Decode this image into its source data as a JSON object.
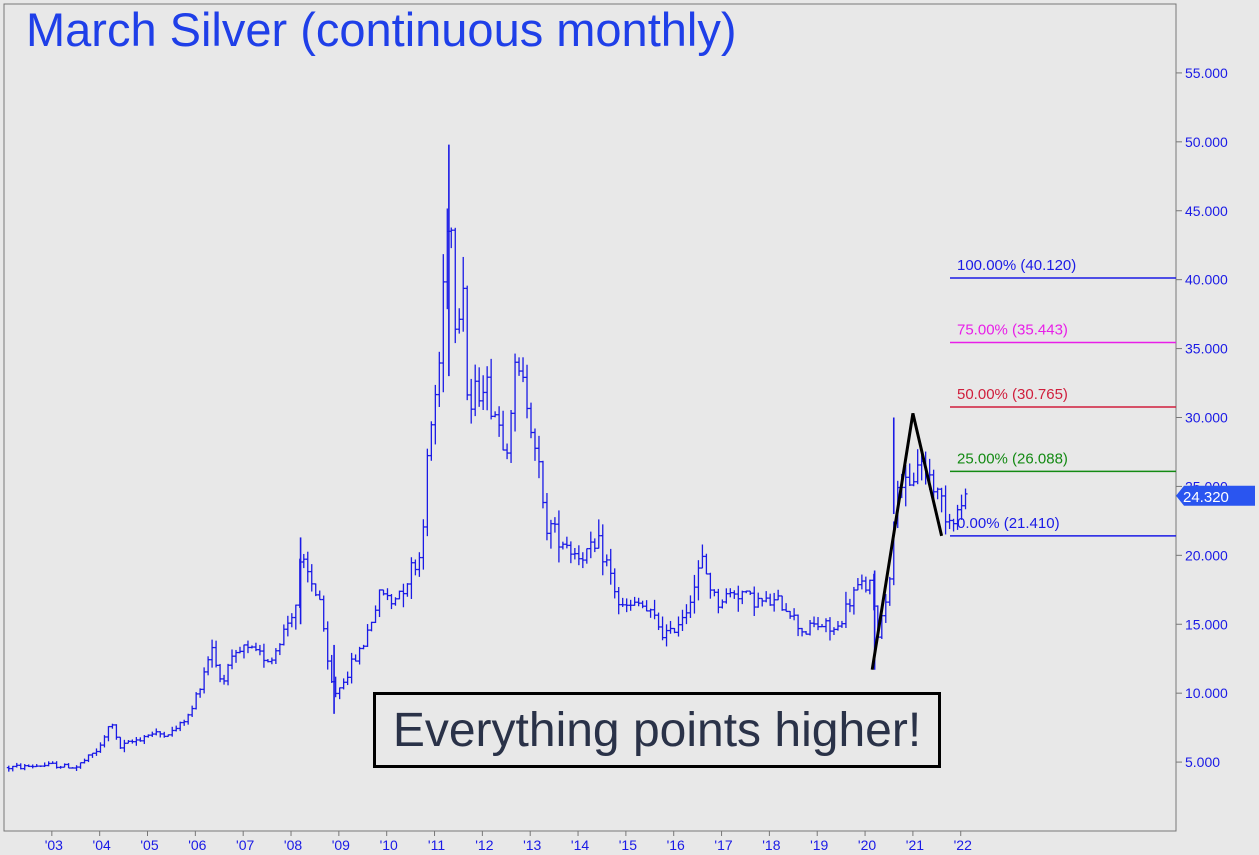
{
  "chart_data": {
    "type": "ohlc",
    "title": "March Silver (continuous monthly)",
    "annotation": "Everything points higher!",
    "last_price": "24.320",
    "y_axis_position": "right",
    "grid": false,
    "ylim": [
      0,
      60
    ],
    "y_ticks": [
      {
        "value": 5,
        "label": "5.000"
      },
      {
        "value": 10,
        "label": "10.000"
      },
      {
        "value": 15,
        "label": "15.000"
      },
      {
        "value": 20,
        "label": "20.000"
      },
      {
        "value": 25,
        "label": "25.000"
      },
      {
        "value": 30,
        "label": "30.000"
      },
      {
        "value": 35,
        "label": "35.000"
      },
      {
        "value": 40,
        "label": "40.000"
      },
      {
        "value": 45,
        "label": "45.000"
      },
      {
        "value": 50,
        "label": "50.000"
      },
      {
        "value": 55,
        "label": "55.000"
      }
    ],
    "x_ticks": [
      {
        "value": 2003,
        "label": "'03"
      },
      {
        "value": 2004,
        "label": "'04"
      },
      {
        "value": 2005,
        "label": "'05"
      },
      {
        "value": 2006,
        "label": "'06"
      },
      {
        "value": 2007,
        "label": "'07"
      },
      {
        "value": 2008,
        "label": "'08"
      },
      {
        "value": 2009,
        "label": "'09"
      },
      {
        "value": 2010,
        "label": "'10"
      },
      {
        "value": 2011,
        "label": "'11"
      },
      {
        "value": 2012,
        "label": "'12"
      },
      {
        "value": 2013,
        "label": "'13"
      },
      {
        "value": 2014,
        "label": "'14"
      },
      {
        "value": 2015,
        "label": "'15"
      },
      {
        "value": 2016,
        "label": "'16"
      },
      {
        "value": 2017,
        "label": "'17"
      },
      {
        "value": 2018,
        "label": "'18"
      },
      {
        "value": 2019,
        "label": "'19"
      },
      {
        "value": 2020,
        "label": "'20"
      },
      {
        "value": 2021,
        "label": "'21"
      },
      {
        "value": 2022,
        "label": "'22"
      }
    ],
    "xlim": [
      2002.0,
      2026.5
    ],
    "series_color": "#1a1ae6",
    "price_path": [
      [
        2002.1,
        4.6
      ],
      [
        2003.0,
        4.8
      ],
      [
        2003.5,
        4.6
      ],
      [
        2004.0,
        6.0
      ],
      [
        2004.25,
        8.0
      ],
      [
        2004.4,
        6.0
      ],
      [
        2005.0,
        7.0
      ],
      [
        2005.5,
        7.1
      ],
      [
        2005.9,
        8.5
      ],
      [
        2006.35,
        13.5
      ],
      [
        2006.5,
        11.0
      ],
      [
        2007.0,
        13.2
      ],
      [
        2007.6,
        12.5
      ],
      [
        2008.1,
        16.5
      ],
      [
        2008.2,
        19.5
      ],
      [
        2008.6,
        16.8
      ],
      [
        2008.8,
        11.0
      ],
      [
        2008.95,
        10.0
      ],
      [
        2009.5,
        13.5
      ],
      [
        2009.9,
        17.5
      ],
      [
        2010.1,
        16.5
      ],
      [
        2010.7,
        20.0
      ],
      [
        2010.9,
        28.5
      ],
      [
        2011.1,
        34.0
      ],
      [
        2011.3,
        47.5
      ],
      [
        2011.45,
        36.0
      ],
      [
        2011.6,
        40.5
      ],
      [
        2011.7,
        30.0
      ],
      [
        2012.0,
        33.0
      ],
      [
        2012.5,
        28.0
      ],
      [
        2012.7,
        33.5
      ],
      [
        2012.9,
        32.0
      ],
      [
        2013.1,
        28.5
      ],
      [
        2013.3,
        22.5
      ],
      [
        2013.6,
        21.5
      ],
      [
        2014.0,
        20.0
      ],
      [
        2014.5,
        20.5
      ],
      [
        2014.9,
        16.0
      ],
      [
        2015.3,
        16.5
      ],
      [
        2015.9,
        14.0
      ],
      [
        2016.3,
        16.5
      ],
      [
        2016.6,
        19.5
      ],
      [
        2016.9,
        16.5
      ],
      [
        2017.3,
        17.5
      ],
      [
        2017.9,
        16.5
      ],
      [
        2018.3,
        16.5
      ],
      [
        2018.7,
        14.5
      ],
      [
        2019.0,
        15.0
      ],
      [
        2019.4,
        14.5
      ],
      [
        2019.8,
        17.5
      ],
      [
        2020.1,
        18.0
      ],
      [
        2020.25,
        14.0
      ],
      [
        2020.5,
        18.0
      ],
      [
        2020.7,
        26.0
      ],
      [
        2020.9,
        24.0
      ],
      [
        2021.1,
        27.0
      ],
      [
        2021.3,
        26.0
      ],
      [
        2021.6,
        24.0
      ],
      [
        2021.8,
        22.5
      ],
      [
        2022.0,
        23.5
      ],
      [
        2022.1,
        24.32
      ]
    ],
    "key_bars": [
      {
        "x": 2008.2,
        "low": 15.0,
        "high": 21.3
      },
      {
        "x": 2008.9,
        "low": 8.5,
        "high": 13.5
      },
      {
        "x": 2011.3,
        "low": 33.0,
        "high": 49.8
      },
      {
        "x": 2020.2,
        "low": 11.7,
        "high": 18.9
      },
      {
        "x": 2020.6,
        "low": 23.0,
        "high": 30.0
      }
    ],
    "pattern_line": {
      "color": "#000000",
      "points": [
        [
          2020.15,
          11.7
        ],
        [
          2021.0,
          30.3
        ],
        [
          2021.6,
          21.41
        ]
      ]
    },
    "levels": [
      {
        "label": "100.00% (40.120)",
        "value": 40.12,
        "color": "#1a1ae6"
      },
      {
        "label": "75.00% (35.443)",
        "value": 35.443,
        "color": "#e81ee8"
      },
      {
        "label": "50.00% (30.765)",
        "value": 30.765,
        "color": "#d01e3c"
      },
      {
        "label": "25.00% (26.088)",
        "value": 26.088,
        "color": "#138a13"
      },
      {
        "label": "0.00% (21.410)",
        "value": 21.41,
        "color": "#1a1ae6"
      }
    ],
    "colors": {
      "background": "#e8e8e8",
      "axis_text": "#1a1ae6",
      "title": "#1f3fe8",
      "price_tag": "#2a55f0"
    }
  }
}
